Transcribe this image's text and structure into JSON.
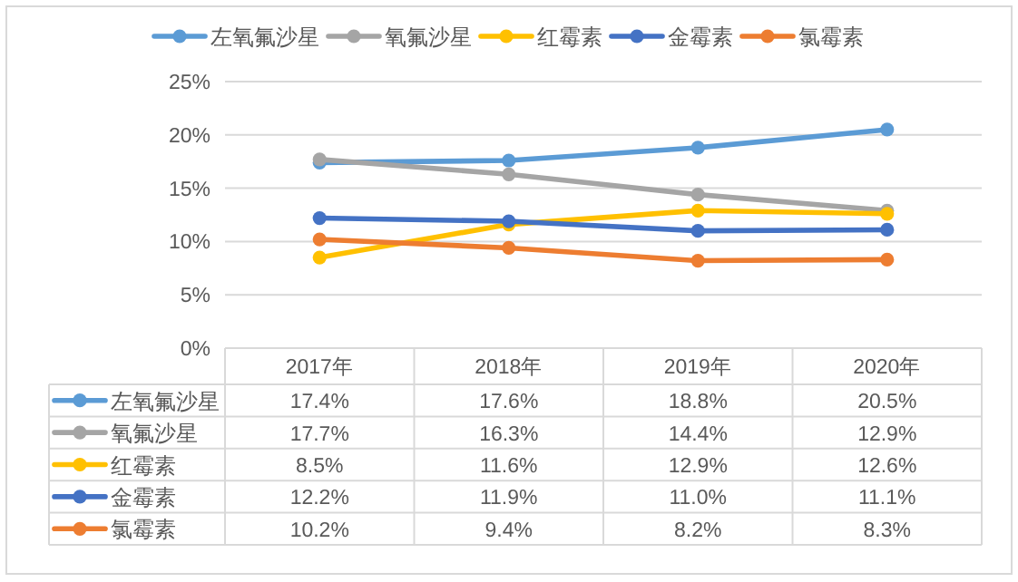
{
  "chart_data": {
    "type": "line",
    "categories": [
      "2017年",
      "2018年",
      "2019年",
      "2020年"
    ],
    "series": [
      {
        "name": "左氧氟沙星",
        "color": "#5b9bd5",
        "values": [
          17.4,
          17.6,
          18.8,
          20.5
        ],
        "value_labels": [
          "17.4%",
          "17.6%",
          "18.8%",
          "20.5%"
        ]
      },
      {
        "name": "氧氟沙星",
        "color": "#a5a5a5",
        "values": [
          17.7,
          16.3,
          14.4,
          12.9
        ],
        "value_labels": [
          "17.7%",
          "16.3%",
          "14.4%",
          "12.9%"
        ]
      },
      {
        "name": "红霉素",
        "color": "#ffc000",
        "values": [
          8.5,
          11.6,
          12.9,
          12.6
        ],
        "value_labels": [
          "8.5%",
          "11.6%",
          "12.9%",
          "12.6%"
        ]
      },
      {
        "name": "金霉素",
        "color": "#4472c4",
        "values": [
          12.2,
          11.9,
          11.0,
          11.1
        ],
        "value_labels": [
          "12.2%",
          "11.9%",
          "11.0%",
          "11.1%"
        ]
      },
      {
        "name": "氯霉素",
        "color": "#ed7d31",
        "values": [
          10.2,
          9.4,
          8.2,
          8.3
        ],
        "value_labels": [
          "10.2%",
          "9.4%",
          "8.2%",
          "8.3%"
        ]
      }
    ],
    "ylim": [
      0,
      25
    ],
    "yticks": [
      {
        "value": 0,
        "label": "0%"
      },
      {
        "value": 5,
        "label": "5%"
      },
      {
        "value": 10,
        "label": "10%"
      },
      {
        "value": 15,
        "label": "15%"
      },
      {
        "value": 20,
        "label": "20%"
      },
      {
        "value": 25,
        "label": "25%"
      }
    ],
    "grid": "y",
    "legend": "top",
    "marker": "circle",
    "line_style": "solid"
  }
}
